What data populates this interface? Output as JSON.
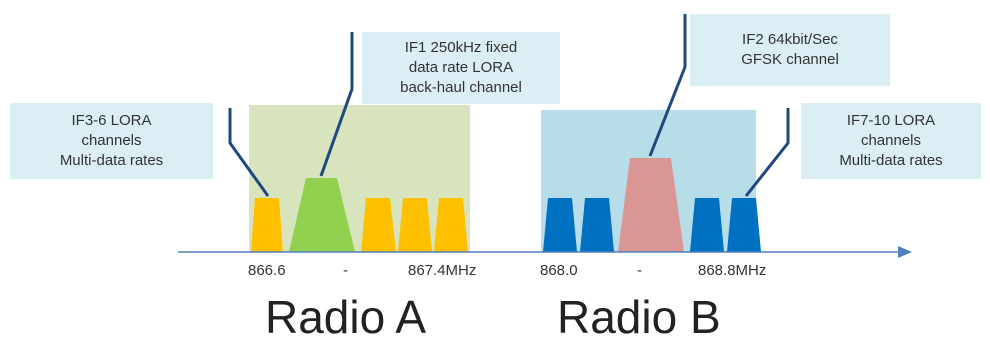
{
  "colors": {
    "radio_a_band": "#d7e4bd",
    "radio_b_band": "#b7dde8",
    "lora_channel_a": "#ffc000",
    "backhaul_channel": "#92d050",
    "lora_channel_b": "#0070c0",
    "gfsk_channel": "#d99694",
    "callout_bg": "#dbeef4",
    "axis": "#4f81bd"
  },
  "callouts": {
    "if3_6": [
      "IF3-6 LORA",
      "channels",
      "Multi-data rates"
    ],
    "if1": [
      "IF1 250kHz fixed",
      "data rate LORA",
      "back-haul channel"
    ],
    "if2": [
      "IF2 64kbit/Sec",
      "GFSK channel"
    ],
    "if7_10": [
      "IF7-10 LORA",
      "channels",
      "Multi-data rates"
    ]
  },
  "frequency_labels": {
    "a_start": "866.6",
    "a_dash": "-",
    "a_end": "867.4MHz",
    "b_start": "868.0",
    "b_dash": "-",
    "b_end": "868.8MHz"
  },
  "radios": {
    "a": "Radio A",
    "b": "Radio B"
  }
}
